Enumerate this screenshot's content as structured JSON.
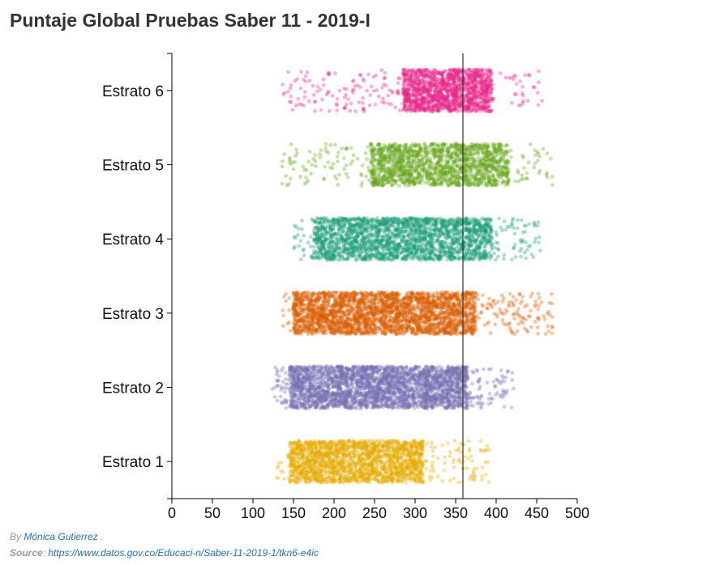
{
  "title": "Puntaje Global Pruebas Saber 11 - 2019-I",
  "credits": {
    "by_label": "By",
    "author": "Mónica Gutierrez",
    "author_suffix": ".",
    "source_label": "Source",
    "source_sep": ":",
    "source_url": "https://www.datos.gov.co/Educaci-n/Saber-11-2019-1/tkn6-e4ic"
  },
  "chart_data": {
    "type": "scatter",
    "subtype": "jittered strip plot",
    "title": "Puntaje Global Pruebas Saber 11 - 2019-I",
    "xlabel": "",
    "ylabel": "",
    "xlim": [
      0,
      500
    ],
    "xticks": [
      0,
      50,
      100,
      150,
      200,
      250,
      300,
      350,
      400,
      450,
      500
    ],
    "reference_line_x": 359,
    "grid": false,
    "legend": "none",
    "categories": [
      "Estrato 6",
      "Estrato 5",
      "Estrato 4",
      "Estrato 3",
      "Estrato 2",
      "Estrato 1"
    ],
    "series": [
      {
        "category": "Estrato 6",
        "color": "#e7298a",
        "min": 132,
        "max": 457,
        "dense_from": 285,
        "dense_to": 395,
        "count": 1600
      },
      {
        "category": "Estrato 5",
        "color": "#66a61e",
        "min": 135,
        "max": 470,
        "dense_from": 245,
        "dense_to": 415,
        "count": 1700
      },
      {
        "category": "Estrato 4",
        "color": "#1b9e77",
        "min": 150,
        "max": 455,
        "dense_from": 175,
        "dense_to": 395,
        "count": 2200
      },
      {
        "category": "Estrato 3",
        "color": "#d95f02",
        "min": 135,
        "max": 470,
        "dense_from": 150,
        "dense_to": 375,
        "count": 2800
      },
      {
        "category": "Estrato 2",
        "color": "#7570b3",
        "min": 122,
        "max": 422,
        "dense_from": 145,
        "dense_to": 365,
        "count": 2800
      },
      {
        "category": "Estrato 1",
        "color": "#e6ab02",
        "min": 128,
        "max": 392,
        "dense_from": 145,
        "dense_to": 310,
        "count": 2000
      }
    ]
  }
}
